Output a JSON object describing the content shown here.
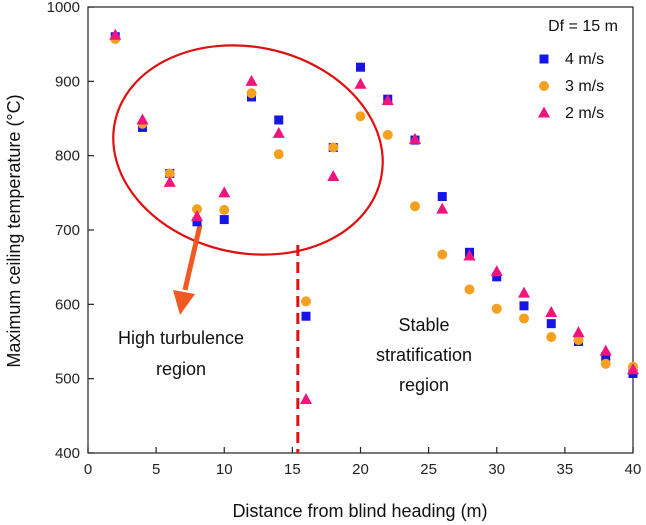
{
  "chart_data": {
    "type": "scatter",
    "xlabel": "Distance from blind heading (m)",
    "ylabel": "Maximum ceiling temperature (°C)",
    "xlim": [
      0,
      40
    ],
    "ylim": [
      400,
      1000
    ],
    "xticks": [
      0,
      5,
      10,
      15,
      20,
      25,
      30,
      35,
      40
    ],
    "yticks": [
      400,
      500,
      600,
      700,
      800,
      900,
      1000
    ],
    "legend": {
      "title": "Df = 15 m",
      "position": "top-right"
    },
    "series": [
      {
        "name": "4 m/s",
        "marker": "square",
        "color": "#1515e6",
        "x": [
          2,
          4,
          6,
          8,
          10,
          12,
          14,
          16,
          18,
          20,
          22,
          24,
          26,
          28,
          30,
          32,
          34,
          36,
          38,
          40
        ],
        "y": [
          960,
          838,
          776,
          711,
          714,
          879,
          848,
          584,
          811,
          919,
          876,
          821,
          745,
          670,
          637,
          598,
          574,
          550,
          530,
          507
        ]
      },
      {
        "name": "3 m/s",
        "marker": "circle",
        "color": "#f5a020",
        "x": [
          2,
          4,
          6,
          8,
          10,
          12,
          14,
          16,
          18,
          20,
          22,
          24,
          26,
          28,
          30,
          32,
          34,
          36,
          38,
          40
        ],
        "y": [
          957,
          843,
          776,
          728,
          727,
          884,
          802,
          604,
          811,
          853,
          828,
          732,
          667,
          620,
          594,
          581,
          556,
          552,
          520,
          516
        ]
      },
      {
        "name": "2 m/s",
        "marker": "triangle",
        "color": "#f0147c",
        "x": [
          2,
          4,
          6,
          8,
          10,
          12,
          14,
          16,
          18,
          20,
          22,
          24,
          26,
          28,
          30,
          32,
          34,
          36,
          38,
          40
        ],
        "y": [
          962,
          848,
          764,
          718,
          750,
          900,
          830,
          472,
          772,
          896,
          874,
          822,
          728,
          665,
          644,
          615,
          589,
          562,
          537,
          512
        ]
      }
    ],
    "annotations": {
      "divider": {
        "x": 15.4,
        "style": "dashed",
        "color": "#e01010"
      },
      "high_turbulence": {
        "lines": [
          "High turbulence",
          "region"
        ]
      },
      "stable": {
        "lines": [
          "Stable",
          "stratification",
          "region"
        ]
      },
      "ellipse_color": "#e01010",
      "arrow_color": "#f05a22"
    }
  }
}
